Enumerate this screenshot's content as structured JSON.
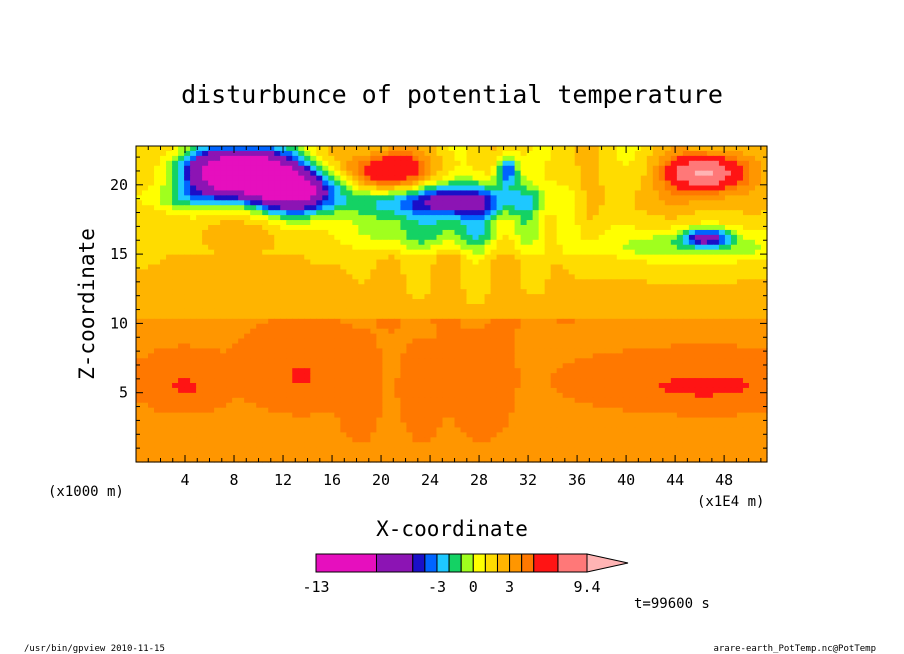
{
  "chart_data": {
    "type": "heatmap",
    "title": "disturbunce of potential temperature",
    "xlabel": "X-coordinate",
    "ylabel": "Z-coordinate",
    "x_unit": "(x1E4 m)",
    "y_unit": "(x1000 m)",
    "xlim": [
      0,
      51.5
    ],
    "ylim": [
      0,
      22.8
    ],
    "x_ticks": [
      {
        "value": 4,
        "label": "4"
      },
      {
        "value": 8,
        "label": "8"
      },
      {
        "value": 12,
        "label": "12"
      },
      {
        "value": 16,
        "label": "16"
      },
      {
        "value": 20,
        "label": "20"
      },
      {
        "value": 24,
        "label": "24"
      },
      {
        "value": 28,
        "label": "28"
      },
      {
        "value": 32,
        "label": "32"
      },
      {
        "value": 36,
        "label": "36"
      },
      {
        "value": 40,
        "label": "40"
      },
      {
        "value": 44,
        "label": "44"
      },
      {
        "value": 48,
        "label": "48"
      }
    ],
    "y_ticks": [
      {
        "value": 5,
        "label": "5"
      },
      {
        "value": 10,
        "label": "10"
      },
      {
        "value": 15,
        "label": "15"
      },
      {
        "value": 20,
        "label": "20"
      }
    ],
    "colorbar": {
      "min": -13,
      "max": 9.4,
      "levels": [
        -13,
        -8,
        -5,
        -4,
        -3,
        -2,
        -1,
        0,
        1,
        2,
        3,
        4,
        5,
        7,
        9.4
      ],
      "colors": [
        "#e60fbe",
        "#8c14b4",
        "#1a0fc8",
        "#0064ff",
        "#1ec8ff",
        "#14d264",
        "#a0ff1e",
        "#ffff00",
        "#ffdc00",
        "#ffb400",
        "#ff9600",
        "#ff7800",
        "#ff1414",
        "#ff7878",
        "#ffb4b4"
      ],
      "tick_labels": [
        {
          "value": -13,
          "label": "-13"
        },
        {
          "value": -3,
          "label": "-3"
        },
        {
          "value": 0,
          "label": "0"
        },
        {
          "value": 3,
          "label": "3"
        },
        {
          "value": 9.4,
          "label": "9.4"
        }
      ]
    },
    "features": [
      {
        "kind": "cold",
        "x": 8,
        "y": 20.8,
        "min": -13
      },
      {
        "kind": "warm",
        "x": 20.5,
        "y": 20.8,
        "max": 6
      },
      {
        "kind": "warm",
        "x": 46.5,
        "y": 20.8,
        "max": 9.4
      },
      {
        "kind": "cold",
        "x": 30.3,
        "y": 20.8,
        "min": -5
      },
      {
        "kind": "cold",
        "x": 46.5,
        "y": 16.2,
        "min": -3
      }
    ]
  },
  "time_label": "t=99600 s",
  "footer_left": "/usr/bin/gpview   2010-11-15",
  "footer_right": "arare-earth_PotTemp.nc@PotTemp"
}
